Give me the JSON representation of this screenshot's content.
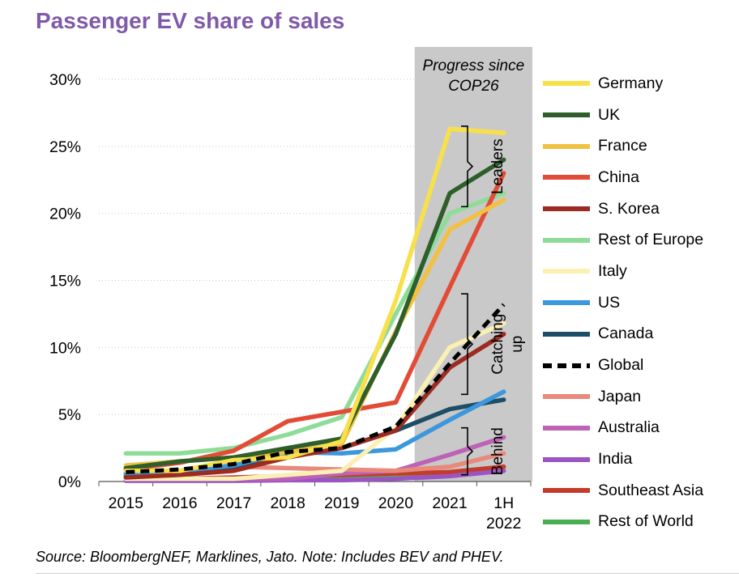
{
  "title": "Passenger EV share of sales",
  "source": "Source: BloombergNEF, Marklines, Jato. Note: Includes BEV and PHEV.",
  "shaded_region_label": [
    "Progress since",
    "COP26"
  ],
  "groups": [
    {
      "label": [
        "Leaders"
      ],
      "range": [
        20.5,
        26.5
      ]
    },
    {
      "label": [
        "Catching",
        "up"
      ],
      "range": [
        6.5,
        14
      ]
    },
    {
      "label": [
        "Behind"
      ],
      "range": [
        0.5,
        4
      ]
    }
  ],
  "chart_data": {
    "type": "line",
    "title": "Passenger EV share of sales",
    "xlabel": "",
    "ylabel": "",
    "categories": [
      "2015",
      "2016",
      "2017",
      "2018",
      "2019",
      "2020",
      "2021",
      "1H 2022"
    ],
    "category_labels": [
      [
        "2015"
      ],
      [
        "2016"
      ],
      [
        "2017"
      ],
      [
        "2018"
      ],
      [
        "2019"
      ],
      [
        "2020"
      ],
      [
        "2021"
      ],
      [
        "1H",
        "2022"
      ]
    ],
    "ylim": [
      0,
      30
    ],
    "yticks": [
      0,
      5,
      10,
      15,
      20,
      25,
      30
    ],
    "ytick_labels": [
      "0%",
      "5%",
      "10%",
      "15%",
      "20%",
      "25%",
      "30%"
    ],
    "grid": "horizontal dotted",
    "legend": "right",
    "shaded_region": [
      "2021",
      "1H 2022"
    ],
    "series": [
      {
        "name": "Germany",
        "color": "#f8e04a",
        "dash": false,
        "values": [
          0.8,
          0.8,
          1.6,
          1.8,
          3.0,
          13.5,
          26.3,
          26.0
        ]
      },
      {
        "name": "UK",
        "color": "#2e5f2a",
        "dash": false,
        "values": [
          1.0,
          1.5,
          1.8,
          2.5,
          3.2,
          11.0,
          21.5,
          24.0
        ]
      },
      {
        "name": "France",
        "color": "#f2c142",
        "dash": false,
        "values": [
          1.2,
          1.5,
          1.8,
          2.2,
          2.8,
          11.2,
          18.8,
          21.0
        ]
      },
      {
        "name": "China",
        "color": "#e24c36",
        "dash": false,
        "values": [
          0.9,
          1.4,
          2.3,
          4.5,
          5.2,
          5.9,
          14.5,
          23.0
        ]
      },
      {
        "name": "S. Korea",
        "color": "#9c2b22",
        "dash": false,
        "values": [
          0.3,
          0.5,
          0.8,
          1.8,
          2.5,
          3.8,
          8.5,
          11.0
        ]
      },
      {
        "name": "Rest of Europe",
        "color": "#8fdc98",
        "dash": false,
        "values": [
          2.1,
          2.1,
          2.5,
          3.5,
          4.8,
          12.5,
          20.0,
          21.5
        ]
      },
      {
        "name": "Italy",
        "color": "#fbf0b3",
        "dash": false,
        "values": [
          0.2,
          0.2,
          0.2,
          0.5,
          0.8,
          4.0,
          10.0,
          11.8
        ]
      },
      {
        "name": "US",
        "color": "#3d97dd",
        "dash": false,
        "values": [
          0.6,
          0.8,
          1.2,
          2.2,
          2.1,
          2.4,
          4.6,
          6.7
        ]
      },
      {
        "name": "Canada",
        "color": "#1e4e66",
        "dash": false,
        "values": [
          0.4,
          0.5,
          1.0,
          2.0,
          2.5,
          3.8,
          5.4,
          6.1
        ]
      },
      {
        "name": "Global",
        "color": "#000000",
        "dash": true,
        "values": [
          0.7,
          0.9,
          1.3,
          2.2,
          2.5,
          4.1,
          8.8,
          13.2
        ]
      },
      {
        "name": "Japan",
        "color": "#e8897c",
        "dash": false,
        "values": [
          0.7,
          0.6,
          1.1,
          1.0,
          0.9,
          0.8,
          1.1,
          2.1
        ]
      },
      {
        "name": "Australia",
        "color": "#be62b7",
        "dash": false,
        "values": [
          0.2,
          0.2,
          0.2,
          0.2,
          0.6,
          0.8,
          2.0,
          3.3
        ]
      },
      {
        "name": "India",
        "color": "#9a55c2",
        "dash": false,
        "values": [
          0.05,
          0.05,
          0.05,
          0.1,
          0.1,
          0.2,
          0.4,
          0.8
        ]
      },
      {
        "name": "Southeast Asia",
        "color": "#c43b2a",
        "dash": false,
        "values": [
          0.2,
          0.2,
          0.3,
          0.4,
          0.5,
          0.6,
          0.7,
          1.1
        ]
      },
      {
        "name": "Rest of World",
        "color": "#4cae52",
        "dash": false,
        "values": [
          0.1,
          0.1,
          0.2,
          0.2,
          0.3,
          0.4,
          0.5,
          0.8
        ]
      }
    ]
  }
}
